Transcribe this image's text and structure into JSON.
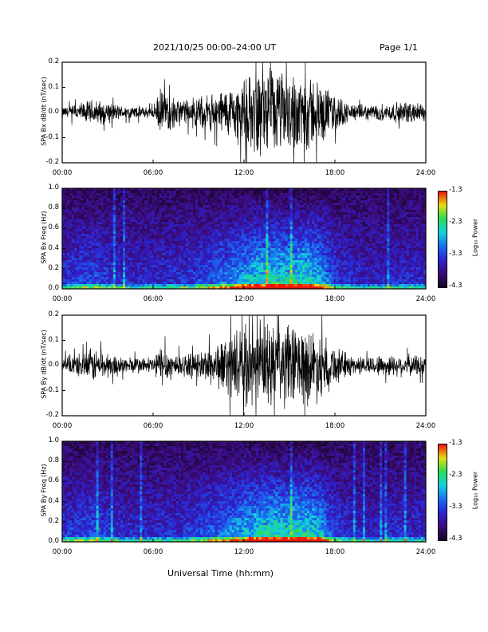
{
  "header": {
    "date_range": "2021/10/25  00:00–24:00 UT",
    "page": "Page 1/1"
  },
  "x_axis": {
    "ticks": [
      "00:00",
      "06:00",
      "12:00",
      "18:00",
      "24:00"
    ],
    "title": "Universal Time (hh:mm)"
  },
  "colorbar": {
    "label": "Log₁₀ Power",
    "ticks": [
      "-1.3",
      "-2.3",
      "-3.3",
      "-4.3"
    ]
  },
  "colors": {
    "trace": "#000000",
    "spec_low": "#1a0a30",
    "spec_mid": "#2f22c8",
    "spec_hi": "#18e0c0",
    "spec_peak": "#f0d010"
  },
  "chart_data": [
    {
      "type": "line",
      "ylabel": "SPA Bx dB/dt (nT/sec)",
      "ylim": [
        -0.2,
        0.2
      ],
      "yticks": [
        "0.2",
        "0.1",
        "0.0",
        "-0.1",
        "-0.2"
      ],
      "xlim": [
        0,
        24
      ],
      "series": [
        {
          "x": [
            0,
            1,
            2,
            3,
            4,
            5,
            6,
            6.5,
            7,
            8,
            9,
            10,
            11,
            12,
            13,
            14,
            15,
            16,
            17,
            18,
            19,
            20,
            21,
            22,
            23,
            24
          ],
          "amplitude": [
            0.025,
            0.04,
            0.06,
            0.05,
            0.03,
            0.03,
            0.025,
            0.11,
            0.08,
            0.06,
            0.07,
            0.09,
            0.12,
            0.15,
            0.2,
            0.2,
            0.18,
            0.2,
            0.14,
            0.09,
            0.04,
            0.035,
            0.04,
            0.045,
            0.05,
            0.04
          ]
        }
      ]
    },
    {
      "type": "heatmap",
      "ylabel": "SPA Bx Freq (Hz)",
      "ylim": [
        0.0,
        1.0
      ],
      "yticks": [
        "1.0",
        "0.8",
        "0.6",
        "0.4",
        "0.2",
        "0.0"
      ],
      "xlim": [
        0,
        24
      ],
      "zlim": [
        -4.3,
        -1.3
      ],
      "activity_hours": [
        0,
        2,
        4,
        6,
        8,
        10,
        11,
        12,
        13,
        14,
        15,
        16,
        17,
        18,
        20,
        22,
        24
      ],
      "activity_level": [
        0.35,
        0.45,
        0.3,
        0.3,
        0.35,
        0.5,
        0.6,
        0.7,
        0.8,
        0.85,
        0.8,
        0.85,
        0.75,
        0.4,
        0.25,
        0.3,
        0.3
      ]
    },
    {
      "type": "line",
      "ylabel": "SPA By dB/dt (nT/sec)",
      "ylim": [
        -0.2,
        0.2
      ],
      "yticks": [
        "0.2",
        "0.1",
        "0.0",
        "-0.1",
        "-0.2"
      ],
      "xlim": [
        0,
        24
      ],
      "series": [
        {
          "x": [
            0,
            1,
            2,
            3,
            4,
            5,
            6,
            6.5,
            7,
            8,
            9,
            10,
            11,
            12,
            13,
            14,
            15,
            16,
            17,
            18,
            19,
            20,
            21,
            22,
            23,
            24
          ],
          "amplitude": [
            0.04,
            0.05,
            0.08,
            0.06,
            0.04,
            0.04,
            0.04,
            0.1,
            0.07,
            0.05,
            0.06,
            0.1,
            0.14,
            0.18,
            0.2,
            0.2,
            0.2,
            0.18,
            0.16,
            0.09,
            0.05,
            0.04,
            0.05,
            0.05,
            0.05,
            0.05
          ]
        }
      ]
    },
    {
      "type": "heatmap",
      "ylabel": "SPA By Freq (Hz)",
      "ylim": [
        0.0,
        1.0
      ],
      "yticks": [
        "1.0",
        "0.8",
        "0.6",
        "0.4",
        "0.2",
        "0.0"
      ],
      "xlim": [
        0,
        24
      ],
      "zlim": [
        -4.3,
        -1.3
      ],
      "activity_hours": [
        0,
        2,
        4,
        6,
        8,
        10,
        11,
        12,
        13,
        14,
        15,
        16,
        17,
        18,
        20,
        22,
        24
      ],
      "activity_level": [
        0.35,
        0.45,
        0.3,
        0.3,
        0.35,
        0.5,
        0.6,
        0.7,
        0.8,
        0.85,
        0.8,
        0.85,
        0.75,
        0.4,
        0.25,
        0.3,
        0.3
      ]
    }
  ]
}
